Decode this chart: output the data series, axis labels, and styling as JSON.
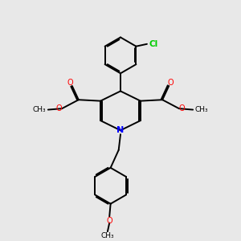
{
  "bg_color": "#e8e8e8",
  "bond_color": "#000000",
  "bond_width": 1.4,
  "N_color": "#0000ff",
  "O_color": "#ff0000",
  "Cl_color": "#00cc00",
  "text_color": "#000000",
  "font_size": 7.0,
  "figsize": [
    3.0,
    3.0
  ],
  "dpi": 100,
  "xlim": [
    0,
    10
  ],
  "ylim": [
    0,
    10
  ]
}
